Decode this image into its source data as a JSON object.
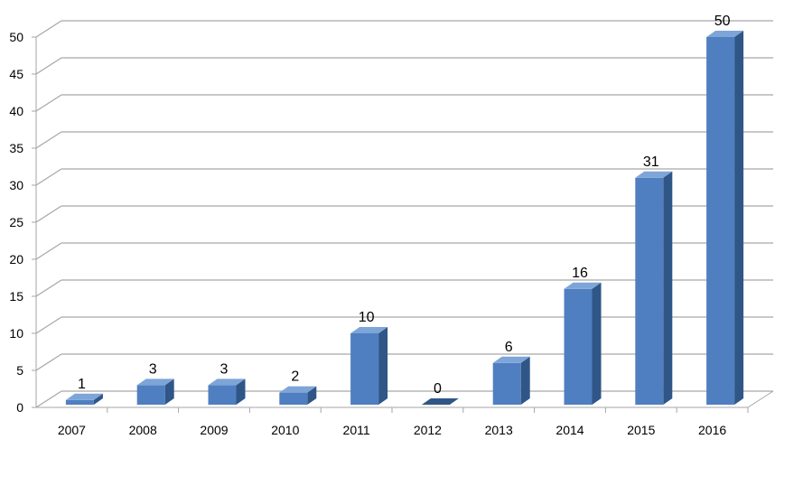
{
  "chart_data": {
    "type": "bar",
    "categories": [
      "2007",
      "2008",
      "2009",
      "2010",
      "2011",
      "2012",
      "2013",
      "2014",
      "2015",
      "2016"
    ],
    "values": [
      1,
      3,
      3,
      2,
      10,
      0,
      6,
      16,
      31,
      50
    ],
    "data_labels": [
      "1",
      "3",
      "3",
      "2",
      "10",
      "0",
      "6",
      "16",
      "31",
      "50"
    ],
    "y_ticks": [
      "0",
      "5",
      "10",
      "15",
      "20",
      "25",
      "30",
      "35",
      "40",
      "45",
      "50"
    ],
    "ylim": [
      0,
      50
    ],
    "grid": true,
    "legend": "none",
    "style": "3d-column"
  },
  "colors": {
    "bar_front": "#4f7fc0",
    "bar_side": "#2f5687",
    "bar_top": "#7ea5d8",
    "grid": "#a6a6a6",
    "text": "#000000"
  }
}
